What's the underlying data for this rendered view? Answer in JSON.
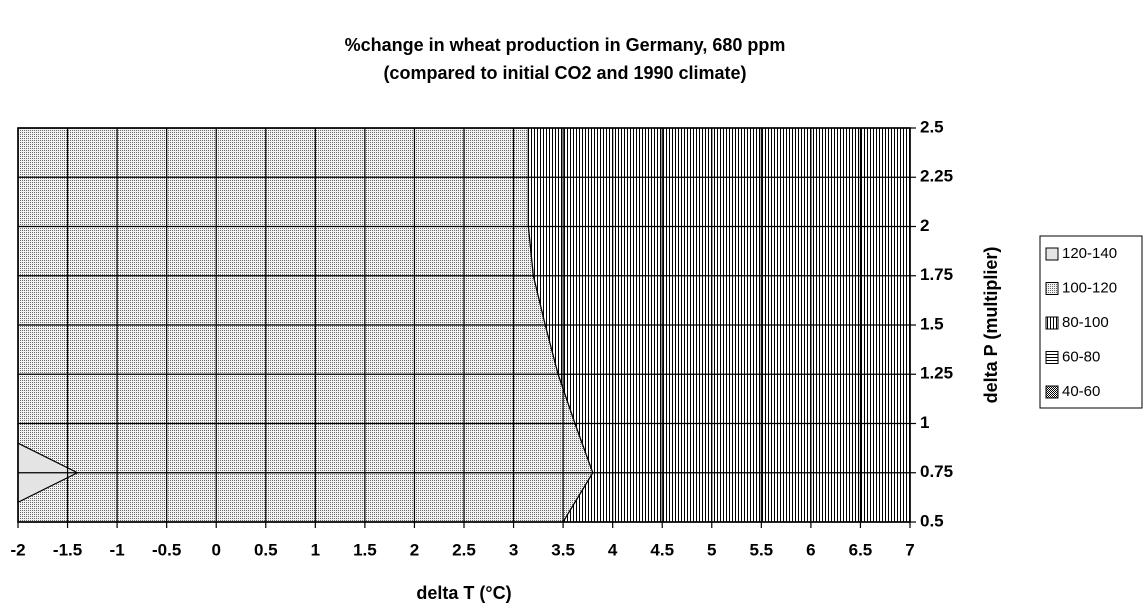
{
  "chart_data": {
    "type": "contour",
    "title": "%change in wheat production in Germany, 680 ppm",
    "subtitle": "(compared to initial CO2 and 1990 climate)",
    "x_label": "delta T (°C)",
    "y_label": "delta P (multiplier)",
    "xlim": [
      -2,
      7
    ],
    "ylim": [
      0.5,
      2.5
    ],
    "xticks": [
      -2,
      -1.5,
      -1,
      -0.5,
      0,
      0.5,
      1,
      1.5,
      2,
      2.5,
      3,
      3.5,
      4,
      4.5,
      5,
      5.5,
      6,
      6.5,
      7
    ],
    "yticks": [
      0.5,
      0.75,
      1,
      1.25,
      1.5,
      1.75,
      2,
      2.25,
      2.5
    ],
    "grid": true,
    "y_axis_side": "right",
    "legend_position": "right",
    "series": [
      {
        "name": "120-140",
        "color": "#e4e4e4",
        "pattern": "solid",
        "x": [
          -2,
          -1.4,
          -2
        ],
        "y": [
          0.9,
          0.75,
          0.6
        ]
      },
      {
        "name": "100-120",
        "color": "#6a6a6a",
        "pattern": "dots",
        "x": [
          -2,
          3.15,
          3.15,
          3.2,
          3.32,
          3.45,
          3.62,
          3.8,
          3.5,
          -2
        ],
        "y": [
          2.5,
          2.5,
          2,
          1.75,
          1.5,
          1.25,
          1,
          0.75,
          0.5,
          0.5
        ]
      },
      {
        "name": "80-100",
        "color": "#000000",
        "pattern": "vertical",
        "x": [
          3.15,
          7,
          7,
          3.5,
          3.8,
          3.62,
          3.45,
          3.32,
          3.2,
          3.15
        ],
        "y": [
          2.5,
          2.5,
          0.5,
          0.5,
          0.75,
          1,
          1.25,
          1.5,
          1.75,
          2
        ]
      },
      {
        "name": "60-80",
        "color": "#000000",
        "pattern": "horizontal",
        "x": [],
        "y": []
      },
      {
        "name": "40-60",
        "color": "#000000",
        "pattern": "dense",
        "x": [],
        "y": []
      }
    ]
  }
}
